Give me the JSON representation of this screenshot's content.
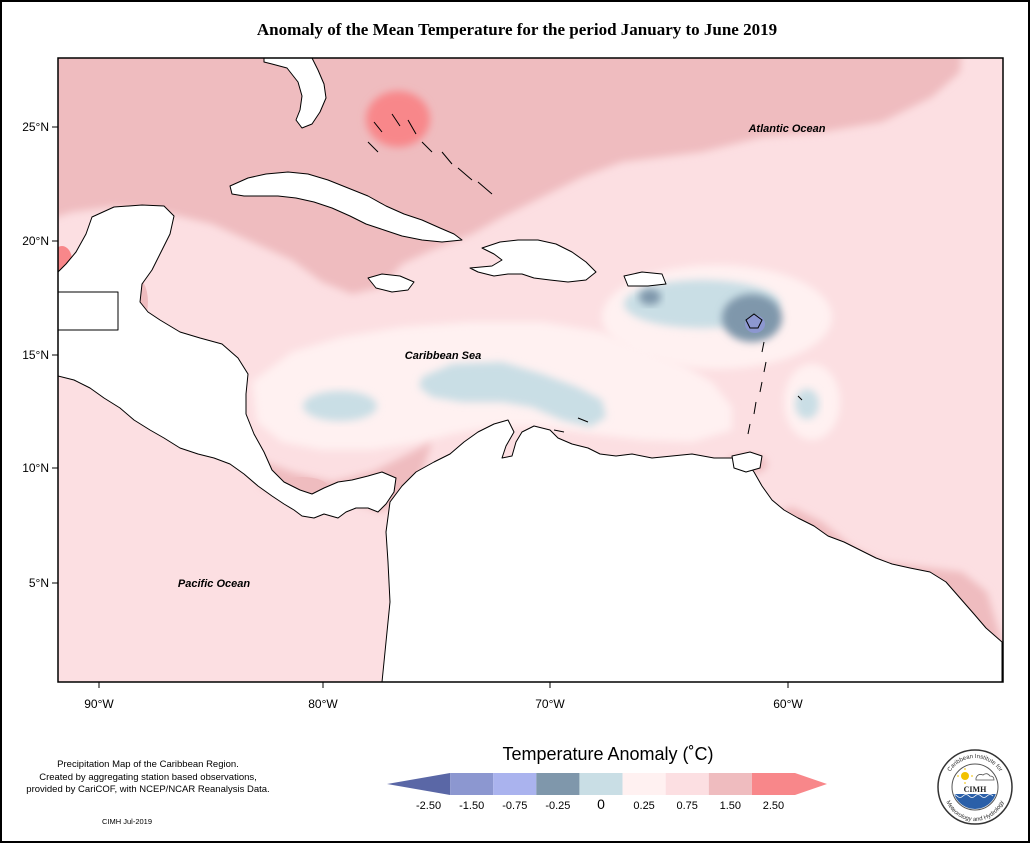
{
  "title": "Anomaly of the Mean Temperature for the period January to June 2019",
  "map": {
    "x_ticks": [
      "90°W",
      "80°W",
      "70°W",
      "60°W"
    ],
    "y_ticks": [
      "25°N",
      "20°N",
      "15°N",
      "10°N",
      "5°N"
    ],
    "labels": {
      "atlantic": "Atlantic Ocean",
      "caribbean": "Caribbean Sea",
      "pacific": "Pacific Ocean"
    }
  },
  "legend": {
    "title": "Temperature Anomaly (˚C)",
    "bins": [
      {
        "color": "#5a67a6"
      },
      {
        "color": "#8c97d0"
      },
      {
        "color": "#aab3ee"
      },
      {
        "color": "#7f97ab"
      },
      {
        "color": "#c9dee5"
      },
      {
        "color": "#fff1f1"
      },
      {
        "color": "#fcdfe2"
      },
      {
        "color": "#efbcbf"
      },
      {
        "color": "#f8878a"
      }
    ],
    "tick_labels": [
      "-2.50",
      "-1.50",
      "-0.75",
      "-0.25",
      "0",
      "0.25",
      "0.75",
      "1.50",
      "2.50"
    ]
  },
  "footnote": {
    "line1": "Precipitation Map of the Caribbean Region.",
    "line2": "Created by aggregating station based observations,",
    "line3": "provided by CariCOF, with NCEP/NCAR Reanalysis Data."
  },
  "credit": "CIMH Jul-2019",
  "logo": {
    "abbrev": "CIMH",
    "ring_top": "Caribbean Institute for",
    "ring_bottom": "Meteorology and Hydrology"
  }
}
